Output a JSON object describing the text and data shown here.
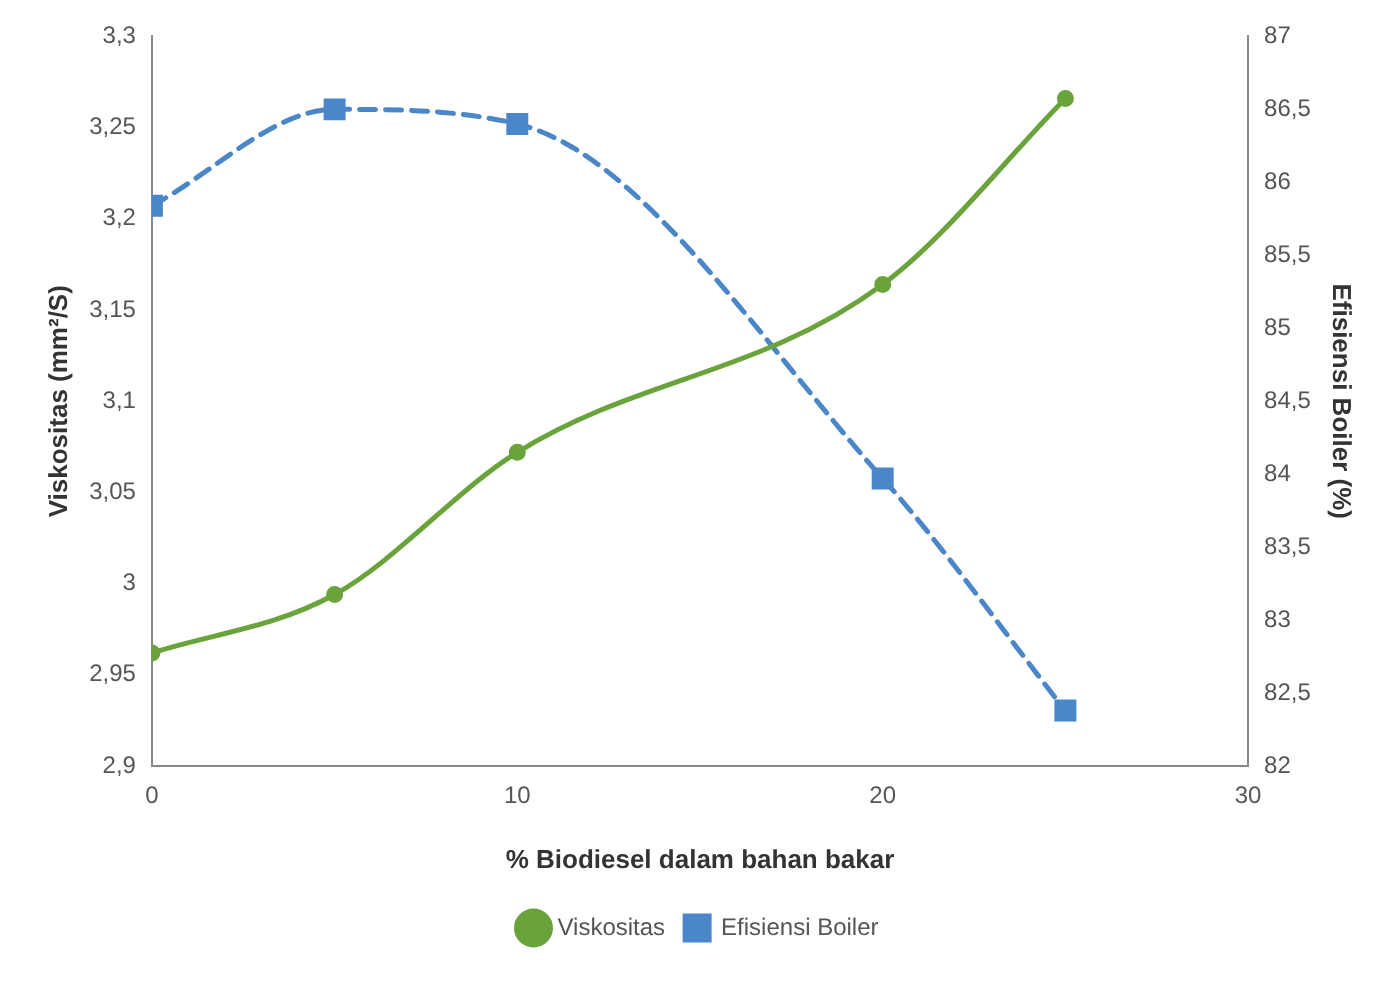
{
  "chart_data": {
    "type": "line",
    "xlabel": "% Biodiesel dalam bahan bakar",
    "ylabel": "Viskositas (mm²/S)",
    "y2label": "Efisiensi Boiler (%)",
    "x": [
      0,
      5,
      10,
      20,
      25
    ],
    "series": [
      {
        "name": "Viskositas",
        "color": "#6aa33b",
        "values": [
          2.962,
          2.994,
          3.072,
          3.164,
          3.266
        ],
        "marker": "circle",
        "line_style": "solid"
      },
      {
        "name": "Efisiensi Boiler",
        "color": "#4a86c8",
        "values": [
          85.84,
          86.5,
          86.4,
          83.97,
          82.38
        ],
        "axis": "y2",
        "marker": "square",
        "line_style": "dashed"
      }
    ],
    "xlim": [
      0,
      30
    ],
    "xticks": [
      0,
      10,
      20,
      30
    ],
    "ylim": [
      2.9,
      3.3
    ],
    "yticks": [
      {
        "value": 2.9,
        "label": "2,9"
      },
      {
        "value": 2.95,
        "label": "2,95"
      },
      {
        "value": 3,
        "label": "3"
      },
      {
        "value": 3.05,
        "label": "3,05"
      },
      {
        "value": 3.1,
        "label": "3,1"
      },
      {
        "value": 3.15,
        "label": "3,15"
      },
      {
        "value": 3.2,
        "label": "3,2"
      },
      {
        "value": 3.25,
        "label": "3,25"
      },
      {
        "value": 3.3,
        "label": "3,3"
      }
    ],
    "y2lim": [
      82,
      87
    ],
    "y2ticks": [
      82,
      {
        "value": 82.5,
        "label": "82,5"
      },
      83,
      {
        "value": 83.5,
        "label": "83,5"
      },
      84,
      {
        "value": 84.5,
        "label": "84,5"
      },
      85,
      {
        "value": 85.5,
        "label": "85,5"
      },
      86,
      {
        "value": 86.5,
        "label": "86,5"
      },
      87
    ],
    "grid": false,
    "legend": "bottom"
  }
}
